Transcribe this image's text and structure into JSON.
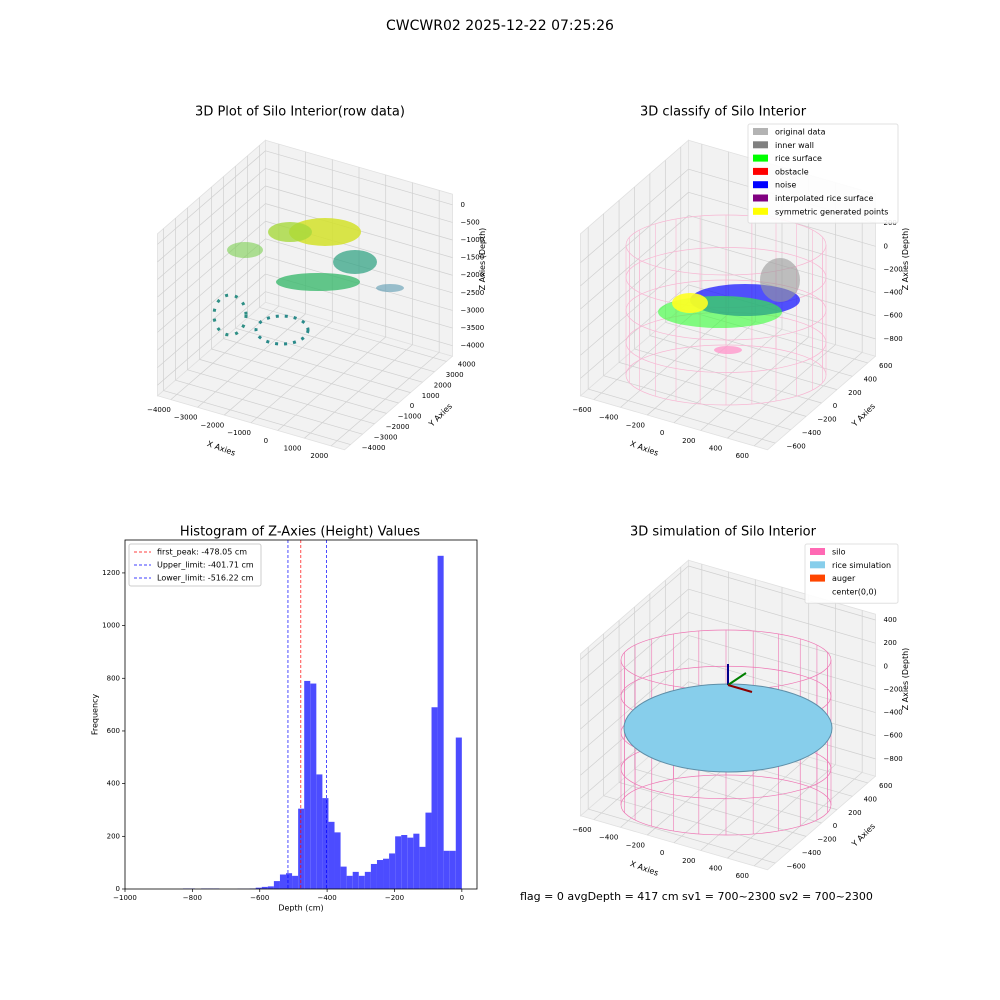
{
  "title": "CWCWR02 2025-12-22 07:25:26",
  "status": "flag = 0     avgDepth = 417 cm  sv1 = 700~2300  sv2 = 700~2300",
  "chart_data": [
    {
      "type": "scatter3d",
      "title": "3D Plot of Silo Interior(row data)",
      "xlabel": "X Axies",
      "ylabel": "Y Axies",
      "zlabel": "Z Axies (Depth)",
      "xlim": [
        -4500,
        2500
      ],
      "ylim": [
        -4500,
        4500
      ],
      "zlim": [
        -4300,
        300
      ],
      "xticks": [
        {
          "value": -4000,
          "label": "−4000"
        },
        {
          "value": -3000,
          "label": "−3000"
        },
        {
          "value": -2000,
          "label": "−2000"
        },
        {
          "value": -1000,
          "label": "−1000"
        },
        0,
        1000,
        2000
      ],
      "yticks": [
        {
          "value": -4000,
          "label": "−4000"
        },
        {
          "value": -3000,
          "label": "−3000"
        },
        {
          "value": -2000,
          "label": "−2000"
        },
        {
          "value": -1000,
          "label": "−1000"
        },
        0,
        1000,
        2000,
        3000,
        4000
      ],
      "zticks": [
        {
          "value": -4000,
          "label": "−4000"
        },
        {
          "value": -3500,
          "label": "−3500"
        },
        {
          "value": -3000,
          "label": "−3000"
        },
        {
          "value": -2500,
          "label": "−2500"
        },
        {
          "value": -2000,
          "label": "−2000"
        },
        {
          "value": -1500,
          "label": "−1500"
        },
        {
          "value": -1000,
          "label": "−1000"
        },
        {
          "value": -500,
          "label": "−500"
        },
        0
      ],
      "grid": true
    },
    {
      "type": "scatter3d",
      "title": "3D classify of Silo Interior",
      "xlabel": "X Axies",
      "ylabel": "Y Axies",
      "zlabel": "Z Axies (Depth)",
      "xlim": [
        -700,
        700
      ],
      "ylim": [
        -700,
        700
      ],
      "zlim": [
        -950,
        450
      ],
      "xticks": [
        {
          "value": -600,
          "label": "−600"
        },
        {
          "value": -400,
          "label": "−400"
        },
        {
          "value": -200,
          "label": "−200"
        },
        0,
        200,
        400,
        600
      ],
      "yticks": [
        {
          "value": -600,
          "label": "−600"
        },
        {
          "value": -400,
          "label": "−400"
        },
        {
          "value": -200,
          "label": "−200"
        },
        0,
        200,
        400,
        600
      ],
      "zticks": [
        {
          "value": -800,
          "label": "−800"
        },
        {
          "value": -600,
          "label": "−600"
        },
        {
          "value": -400,
          "label": "−400"
        },
        {
          "value": -200,
          "label": "−200"
        },
        0,
        200
      ],
      "grid": true,
      "legend_loc": "upper right",
      "legend": [
        {
          "name": "original data",
          "color": "#b3b3b3"
        },
        {
          "name": "inner wall",
          "color": "#808080"
        },
        {
          "name": "rice surface",
          "color": "#00ff00"
        },
        {
          "name": "obstacle",
          "color": "#ff0000"
        },
        {
          "name": "noise",
          "color": "#0000ff"
        },
        {
          "name": "interpolated rice surface",
          "color": "#800080"
        },
        {
          "name": "symmetric generated points",
          "color": "#ffff00"
        }
      ]
    },
    {
      "type": "histogram",
      "title": "Histogram of Z-Axies (Height) Values",
      "xlabel": "Depth (cm)",
      "ylabel": "Frequency",
      "color": "#4c4cff",
      "bins": [
        -828,
        -810,
        -792,
        -774,
        -756,
        -738,
        -720,
        -702,
        -684,
        -666,
        -648,
        -630,
        -612,
        -594,
        -576,
        -558,
        -540,
        -522,
        -504,
        -486,
        -468,
        -450,
        -432,
        -414,
        -396,
        -378,
        -360,
        -342,
        -324,
        -306,
        -288,
        -270,
        -252,
        -234,
        -216,
        -198,
        -180,
        -162,
        -144,
        -126,
        -108,
        -90,
        -72,
        -54,
        -36,
        -18,
        0
      ],
      "values": [
        2,
        2,
        0,
        2,
        2,
        2,
        0,
        0,
        0,
        1,
        1,
        2,
        5,
        8,
        10,
        30,
        55,
        60,
        50,
        305,
        790,
        780,
        435,
        345,
        255,
        215,
        85,
        50,
        65,
        50,
        65,
        95,
        110,
        115,
        135,
        200,
        205,
        195,
        210,
        160,
        290,
        690,
        1265,
        145,
        145,
        575
      ],
      "xlim": [
        -1000,
        45
      ],
      "ylim": [
        0,
        1325
      ],
      "xticks": [
        {
          "value": -1000,
          "label": "−1000"
        },
        {
          "value": -800,
          "label": "−800"
        },
        {
          "value": -600,
          "label": "−600"
        },
        {
          "value": -400,
          "label": "−400"
        },
        {
          "value": -200,
          "label": "−200"
        },
        0
      ],
      "yticks": [
        0,
        200,
        400,
        600,
        800,
        1000,
        1200
      ],
      "legend_loc": "upper left",
      "vlines": [
        {
          "label": "first_peak: -478.05 cm",
          "value": -478.05,
          "color": "#ff0000"
        },
        {
          "label": "Upper_limit: -401.71 cm",
          "value": -401.71,
          "color": "#0000ff"
        },
        {
          "label": "Lower_limit: -516.22 cm",
          "value": -516.22,
          "color": "#0000ff"
        }
      ]
    },
    {
      "type": "surface3d",
      "title": "3D simulation of Silo Interior",
      "xlabel": "X Axies",
      "ylabel": "Y Axies",
      "zlabel": "Z Axies (Depth)",
      "xlim": [
        -700,
        700
      ],
      "ylim": [
        -700,
        700
      ],
      "zlim": [
        -950,
        450
      ],
      "xticks": [
        {
          "value": -600,
          "label": "−600"
        },
        {
          "value": -400,
          "label": "−400"
        },
        {
          "value": -200,
          "label": "−200"
        },
        0,
        200,
        400,
        600
      ],
      "yticks": [
        {
          "value": -600,
          "label": "−600"
        },
        {
          "value": -400,
          "label": "−400"
        },
        {
          "value": -200,
          "label": "−200"
        },
        0,
        200,
        400,
        600
      ],
      "zticks": [
        {
          "value": -800,
          "label": "−800"
        },
        {
          "value": -600,
          "label": "−600"
        },
        {
          "value": -400,
          "label": "−400"
        },
        {
          "value": -200,
          "label": "−200"
        },
        0,
        200,
        400
      ],
      "grid": true,
      "legend_loc": "upper right",
      "legend": [
        {
          "name": "silo",
          "color": "#ff69b4"
        },
        {
          "name": "rice simulation",
          "color": "#87ceeb"
        },
        {
          "name": "auger",
          "color": "#ff4500"
        },
        {
          "name": "center(0,0)",
          "color": "#ffffff"
        }
      ]
    }
  ]
}
